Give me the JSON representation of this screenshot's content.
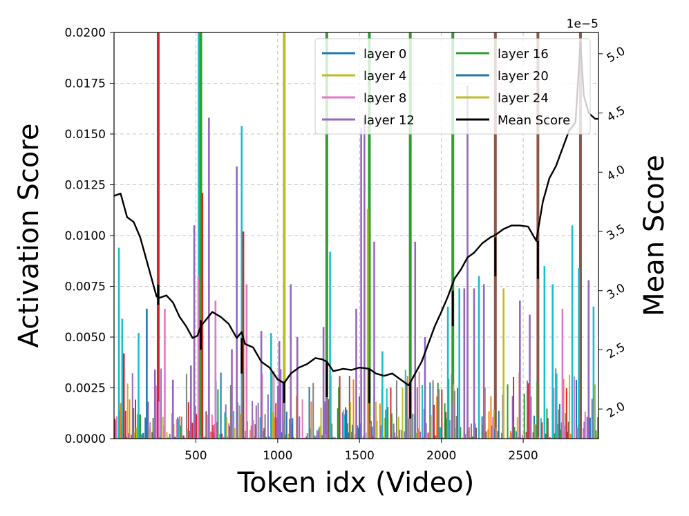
{
  "chart_data": {
    "type": "line",
    "xlabel": "Token idx (Video)",
    "ylabel": "Activation Score",
    "y2label": "Mean Score",
    "y2_exponent": "1e−5",
    "xlim": [
      0,
      2960
    ],
    "ylim": [
      0,
      0.02
    ],
    "y2lim": [
      1.75,
      5.18
    ],
    "grid": true,
    "legend_placement": "top-right",
    "x_ticks": [
      {
        "value": 500,
        "label": "500"
      },
      {
        "value": 1000,
        "label": "1000"
      },
      {
        "value": 1500,
        "label": "1500"
      },
      {
        "value": 2000,
        "label": "2000"
      },
      {
        "value": 2500,
        "label": "2500"
      }
    ],
    "y_ticks": [
      {
        "value": 0.0,
        "label": "0.0000"
      },
      {
        "value": 0.0025,
        "label": "0.0025"
      },
      {
        "value": 0.005,
        "label": "0.0050"
      },
      {
        "value": 0.0075,
        "label": "0.0075"
      },
      {
        "value": 0.01,
        "label": "0.0100"
      },
      {
        "value": 0.0125,
        "label": "0.0125"
      },
      {
        "value": 0.015,
        "label": "0.0150"
      },
      {
        "value": 0.0175,
        "label": "0.0175"
      },
      {
        "value": 0.02,
        "label": "0.0200"
      }
    ],
    "y2_ticks": [
      {
        "value": 2.0,
        "label": "2.0"
      },
      {
        "value": 2.5,
        "label": "2.5"
      },
      {
        "value": 3.0,
        "label": "3.0"
      },
      {
        "value": 3.5,
        "label": "3.5"
      },
      {
        "value": 4.0,
        "label": "4.0"
      },
      {
        "value": 4.5,
        "label": "4.5"
      },
      {
        "value": 5.0,
        "label": "5.0"
      }
    ],
    "legend": [
      {
        "label": "layer 0",
        "color": "#1f77b4"
      },
      {
        "label": "layer 4",
        "color": "#bcbd22"
      },
      {
        "label": "layer 8",
        "color": "#e377c2"
      },
      {
        "label": "layer 12",
        "color": "#9467bd"
      },
      {
        "label": "layer 16",
        "color": "#2ca02c"
      },
      {
        "label": "layer 20",
        "color": "#1f77b4"
      },
      {
        "label": "layer 24",
        "color": "#bcbd22"
      },
      {
        "label": "Mean Score",
        "color": "#000000"
      }
    ],
    "sink_lines": [
      {
        "x": 270,
        "color": "#d62728"
      },
      {
        "x": 520,
        "color": "#17becf"
      },
      {
        "x": 530,
        "color": "#2ca02c"
      },
      {
        "x": 1040,
        "color": "#bcbd22"
      },
      {
        "x": 1300,
        "color": "#2ca02c"
      },
      {
        "x": 1560,
        "color": "#2ca02c"
      },
      {
        "x": 1810,
        "color": "#2ca02c"
      },
      {
        "x": 2070,
        "color": "#2ca02c"
      },
      {
        "x": 2330,
        "color": "#8c564b"
      },
      {
        "x": 2590,
        "color": "#8c564b"
      },
      {
        "x": 2850,
        "color": "#8c564b"
      }
    ],
    "spikes": [
      {
        "x": 30,
        "y": 0.0094,
        "color": "#17becf"
      },
      {
        "x": 50,
        "y": 0.0059,
        "color": "#17becf"
      },
      {
        "x": 60,
        "y": 0.0042,
        "color": "#d62728"
      },
      {
        "x": 150,
        "y": 0.0052,
        "color": "#17becf"
      },
      {
        "x": 200,
        "y": 0.0064,
        "color": "#1f77b4"
      },
      {
        "x": 250,
        "y": 0.0034,
        "color": "#9467bd"
      },
      {
        "x": 310,
        "y": 0.0064,
        "color": "#e377c2"
      },
      {
        "x": 360,
        "y": 0.0029,
        "color": "#9467bd"
      },
      {
        "x": 470,
        "y": 0.0036,
        "color": "#9467bd"
      },
      {
        "x": 490,
        "y": 0.0105,
        "color": "#9467bd"
      },
      {
        "x": 515,
        "y": 0.008,
        "color": "#e377c2"
      },
      {
        "x": 540,
        "y": 0.0121,
        "color": "#d62728"
      },
      {
        "x": 580,
        "y": 0.0158,
        "color": "#9467bd"
      },
      {
        "x": 620,
        "y": 0.0068,
        "color": "#e377c2"
      },
      {
        "x": 720,
        "y": 0.0044,
        "color": "#9467bd"
      },
      {
        "x": 750,
        "y": 0.0134,
        "color": "#9467bd"
      },
      {
        "x": 780,
        "y": 0.0154,
        "color": "#17becf"
      },
      {
        "x": 790,
        "y": 0.0102,
        "color": "#d62728"
      },
      {
        "x": 810,
        "y": 0.0076,
        "color": "#e377c2"
      },
      {
        "x": 900,
        "y": 0.0053,
        "color": "#9467bd"
      },
      {
        "x": 960,
        "y": 0.0052,
        "color": "#17becf"
      },
      {
        "x": 1010,
        "y": 0.0048,
        "color": "#9467bd"
      },
      {
        "x": 1080,
        "y": 0.0076,
        "color": "#9467bd"
      },
      {
        "x": 1120,
        "y": 0.005,
        "color": "#9467bd"
      },
      {
        "x": 1280,
        "y": 0.0055,
        "color": "#9467bd"
      },
      {
        "x": 1320,
        "y": 0.0092,
        "color": "#17becf"
      },
      {
        "x": 1480,
        "y": 0.0064,
        "color": "#9467bd"
      },
      {
        "x": 1510,
        "y": 0.0153,
        "color": "#9467bd"
      },
      {
        "x": 1530,
        "y": 0.0158,
        "color": "#9467bd"
      },
      {
        "x": 1550,
        "y": 0.0113,
        "color": "#bcbd22"
      },
      {
        "x": 1590,
        "y": 0.0097,
        "color": "#9467bd"
      },
      {
        "x": 1640,
        "y": 0.0043,
        "color": "#17becf"
      },
      {
        "x": 1840,
        "y": 0.0097,
        "color": "#9467bd"
      },
      {
        "x": 1900,
        "y": 0.005,
        "color": "#9467bd"
      },
      {
        "x": 2040,
        "y": 0.0065,
        "color": "#17becf"
      },
      {
        "x": 2110,
        "y": 0.0074,
        "color": "#17becf"
      },
      {
        "x": 2140,
        "y": 0.0074,
        "color": "#9467bd"
      },
      {
        "x": 2160,
        "y": 0.0174,
        "color": "#9467bd"
      },
      {
        "x": 2200,
        "y": 0.0074,
        "color": "#9467bd"
      },
      {
        "x": 2230,
        "y": 0.008,
        "color": "#17becf"
      },
      {
        "x": 2260,
        "y": 0.0076,
        "color": "#9467bd"
      },
      {
        "x": 2380,
        "y": 0.0074,
        "color": "#bcbd22"
      },
      {
        "x": 2480,
        "y": 0.0068,
        "color": "#9467bd"
      },
      {
        "x": 2540,
        "y": 0.0061,
        "color": "#9467bd"
      },
      {
        "x": 2630,
        "y": 0.0085,
        "color": "#17becf"
      },
      {
        "x": 2680,
        "y": 0.0076,
        "color": "#17becf"
      },
      {
        "x": 2740,
        "y": 0.0064,
        "color": "#e377c2"
      },
      {
        "x": 2800,
        "y": 0.0105,
        "color": "#17becf"
      },
      {
        "x": 2840,
        "y": 0.0084,
        "color": "#17becf"
      },
      {
        "x": 2900,
        "y": 0.0078,
        "color": "#9467bd"
      },
      {
        "x": 2930,
        "y": 0.0065,
        "color": "#17becf"
      }
    ],
    "mean_score": {
      "x": [
        0,
        40,
        80,
        120,
        160,
        200,
        240,
        260,
        280,
        320,
        360,
        400,
        440,
        480,
        510,
        530,
        560,
        600,
        650,
        700,
        750,
        780,
        800,
        850,
        900,
        950,
        1000,
        1040,
        1080,
        1130,
        1180,
        1230,
        1270,
        1300,
        1340,
        1400,
        1450,
        1500,
        1560,
        1600,
        1650,
        1700,
        1760,
        1800,
        1840,
        1880,
        1920,
        1960,
        2000,
        2040,
        2080,
        2120,
        2160,
        2200,
        2250,
        2300,
        2330,
        2380,
        2430,
        2480,
        2530,
        2580,
        2620,
        2660,
        2700,
        2740,
        2780,
        2820,
        2850,
        2870,
        2900,
        2940,
        2960
      ],
      "y": [
        3.8,
        3.82,
        3.62,
        3.58,
        3.45,
        3.25,
        3.05,
        2.95,
        2.94,
        2.96,
        2.9,
        2.78,
        2.7,
        2.6,
        2.62,
        2.7,
        2.75,
        2.82,
        2.78,
        2.72,
        2.6,
        2.65,
        2.55,
        2.52,
        2.4,
        2.35,
        2.25,
        2.22,
        2.3,
        2.35,
        2.38,
        2.43,
        2.42,
        2.4,
        2.32,
        2.34,
        2.33,
        2.35,
        2.34,
        2.3,
        2.28,
        2.3,
        2.24,
        2.2,
        2.3,
        2.4,
        2.55,
        2.7,
        2.82,
        2.95,
        3.1,
        3.18,
        3.28,
        3.32,
        3.4,
        3.45,
        3.47,
        3.52,
        3.55,
        3.55,
        3.54,
        3.42,
        3.75,
        3.95,
        4.05,
        4.2,
        4.35,
        4.42,
        5.1,
        4.65,
        4.5,
        4.45,
        4.45
      ]
    },
    "mean_dips": [
      {
        "x": 270,
        "from": 3.05,
        "to": 2.88
      },
      {
        "x": 530,
        "from": 2.75,
        "to": 2.5
      },
      {
        "x": 780,
        "from": 2.6,
        "to": 2.3
      },
      {
        "x": 1040,
        "from": 2.22,
        "to": 2.05
      },
      {
        "x": 1300,
        "from": 2.4,
        "to": 2.1
      },
      {
        "x": 1560,
        "from": 2.34,
        "to": 2.05
      },
      {
        "x": 1810,
        "from": 2.22,
        "to": 1.92
      },
      {
        "x": 2070,
        "from": 3.0,
        "to": 2.7
      },
      {
        "x": 2330,
        "from": 3.45,
        "to": 3.12
      },
      {
        "x": 2590,
        "from": 3.42,
        "to": 3.1
      }
    ]
  }
}
